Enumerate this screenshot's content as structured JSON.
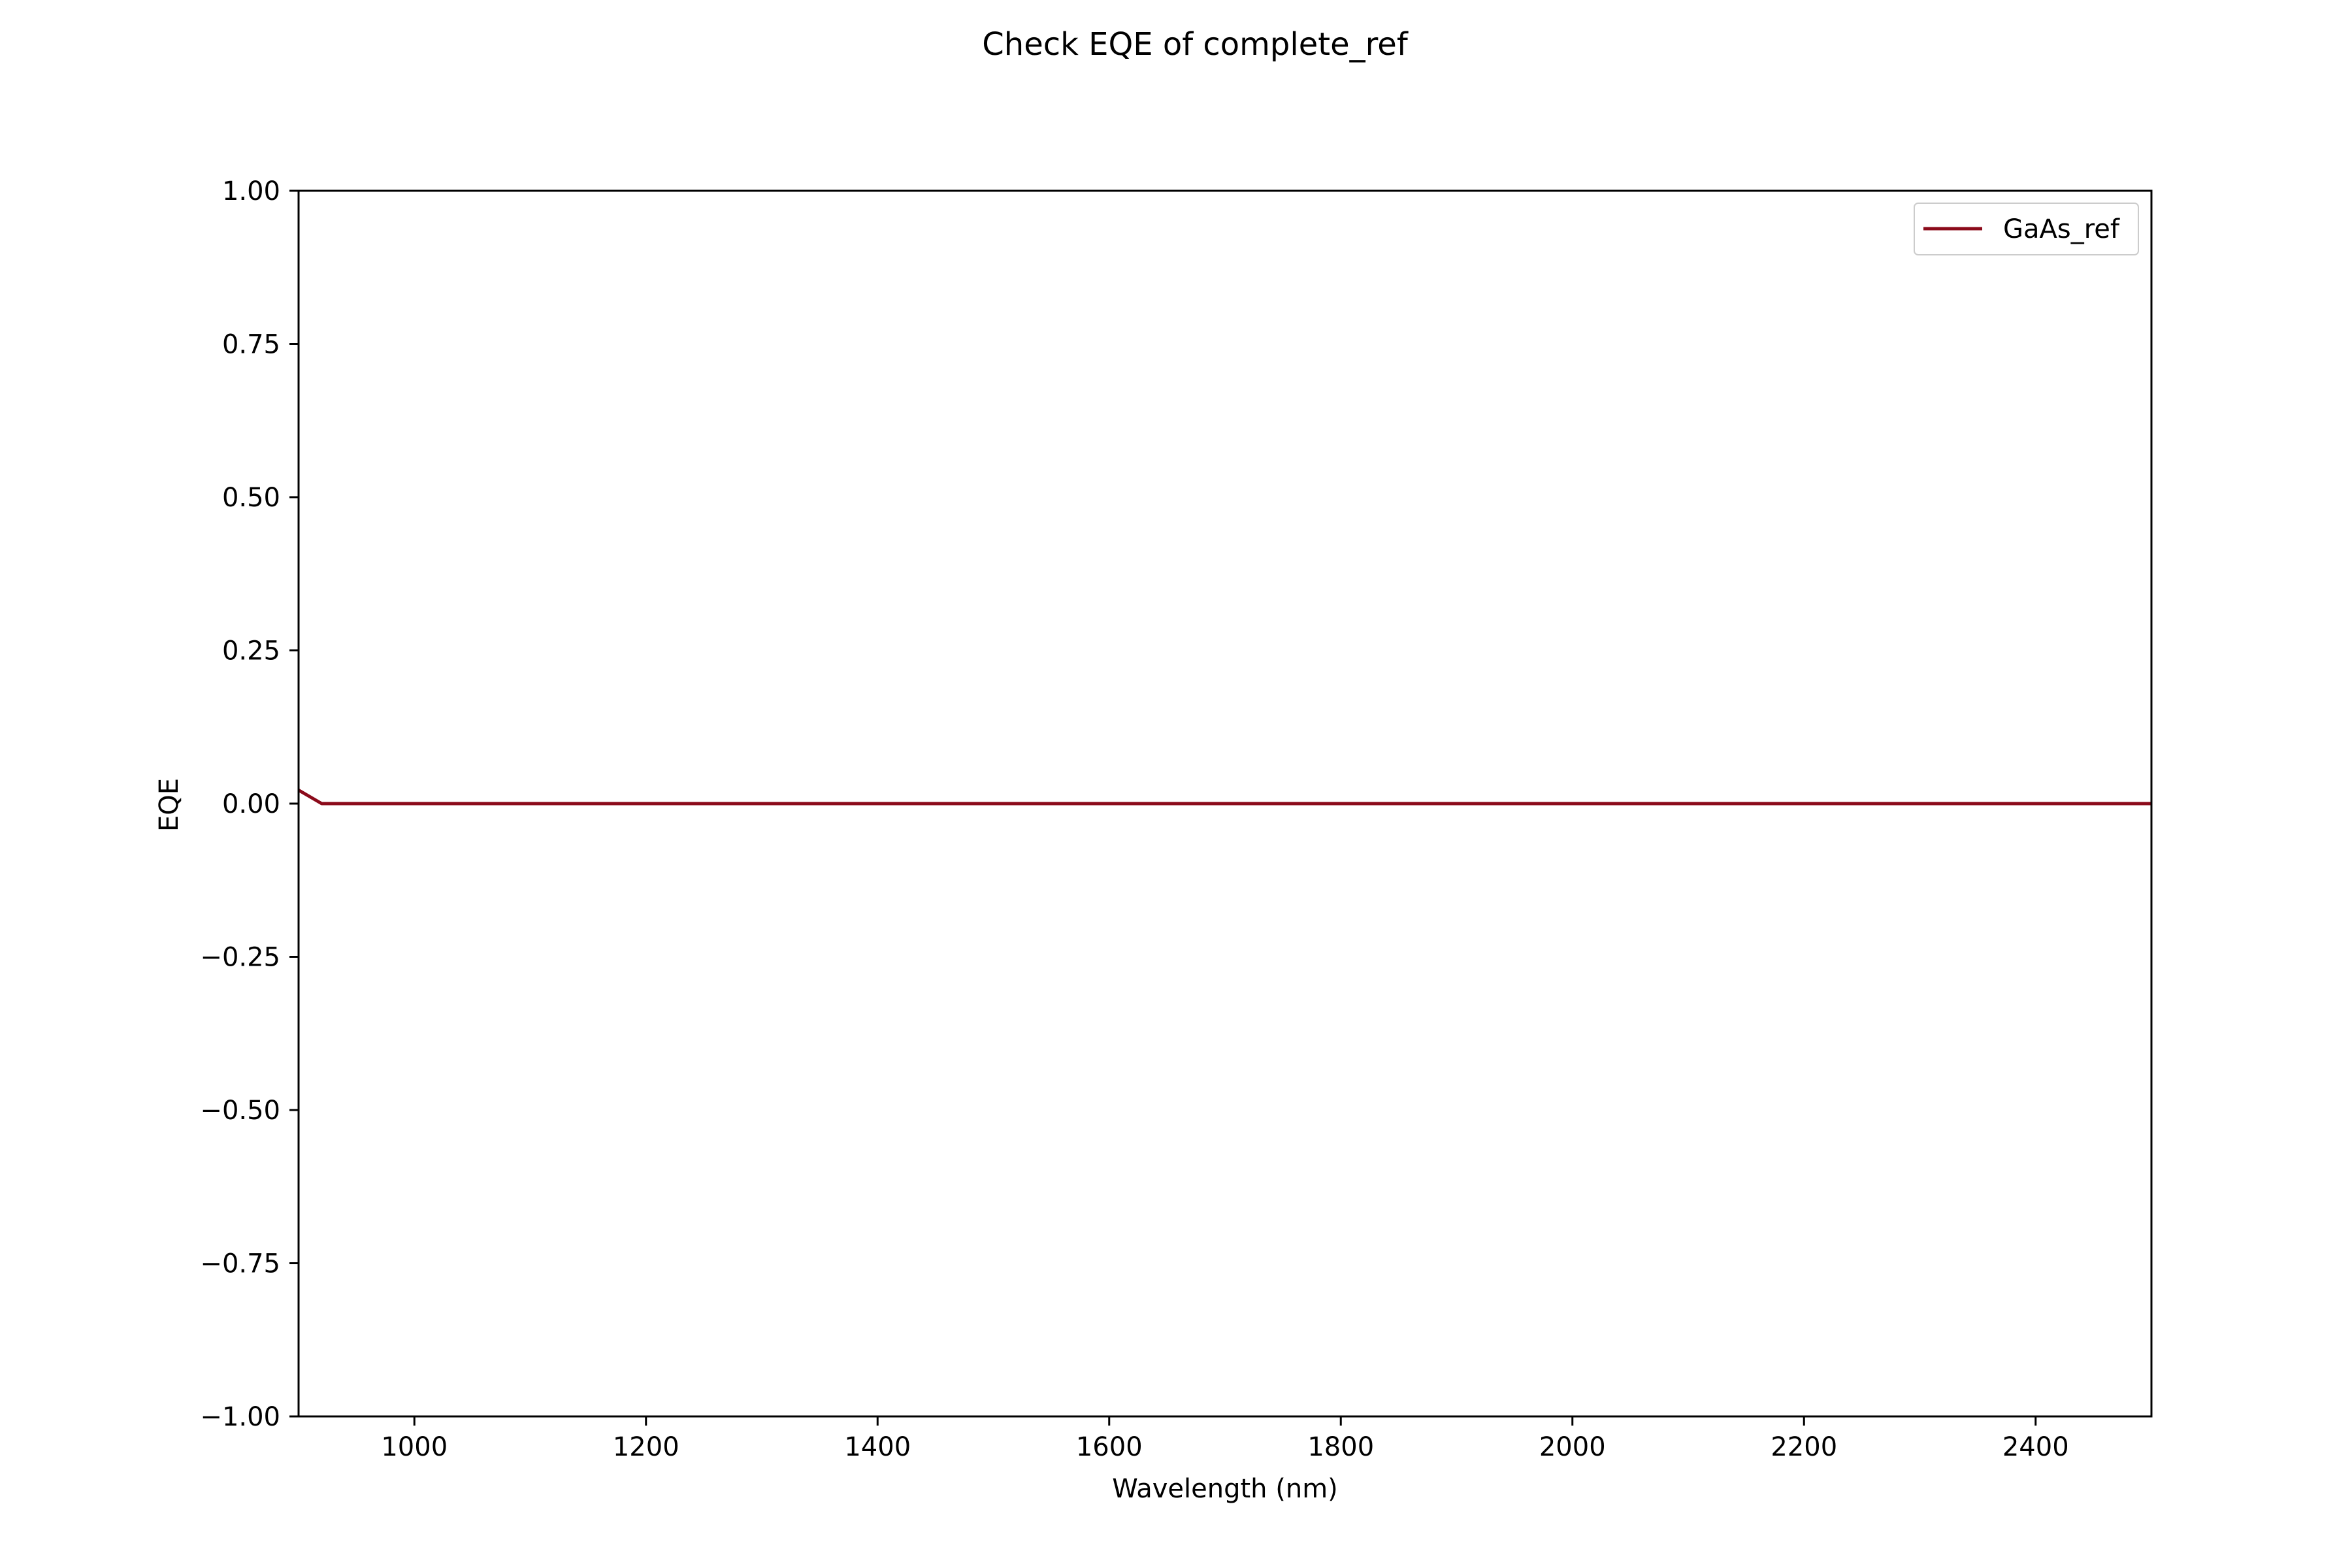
{
  "chart_data": {
    "type": "line",
    "title": "Check EQE of complete_ref",
    "xlabel": "Wavelength (nm)",
    "ylabel": "EQE",
    "xlim": [
      900,
      2500
    ],
    "ylim": [
      -1.0,
      1.0
    ],
    "x_ticks": [
      1000,
      1200,
      1400,
      1600,
      1800,
      2000,
      2200,
      2400
    ],
    "x_tick_labels": [
      "1000",
      "1200",
      "1400",
      "1600",
      "1800",
      "2000",
      "2200",
      "2400"
    ],
    "y_ticks": [
      -1.0,
      -0.75,
      -0.5,
      -0.25,
      0.0,
      0.25,
      0.5,
      0.75,
      1.0
    ],
    "y_tick_labels": [
      "−1.00",
      "−0.75",
      "−0.50",
      "−0.25",
      "0.00",
      "0.25",
      "0.50",
      "0.75",
      "1.00"
    ],
    "grid": false,
    "legend_position": "top-right",
    "series": [
      {
        "name": "GaAs_ref",
        "color": "#8b0a1a",
        "x": [
          900,
          920,
          940,
          1000,
          1200,
          1400,
          1600,
          1800,
          2000,
          2200,
          2400,
          2500
        ],
        "y": [
          0.022,
          0.0,
          0.0,
          0.0,
          0.0,
          0.0,
          0.0,
          0.0,
          0.0,
          0.0,
          0.0,
          0.0
        ]
      }
    ]
  }
}
